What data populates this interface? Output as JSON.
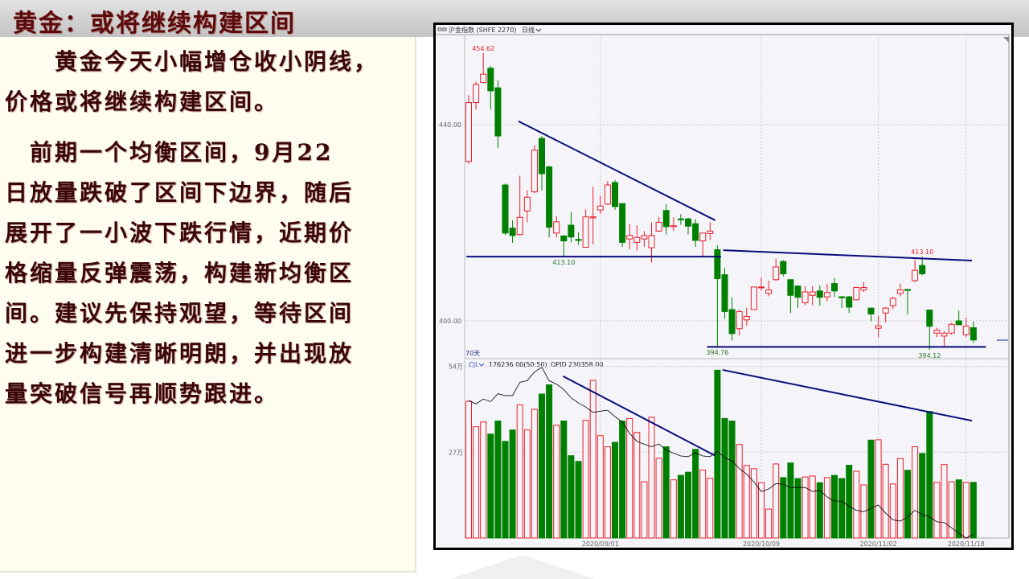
{
  "slide": {
    "title": "黄金：或将继续构建区间",
    "paragraphs": [
      {
        "lines": [
          "　　黄金今天小幅增仓收小阴线，",
          "价格或将继续构建区间。"
        ]
      },
      {
        "lines": [
          "　前期一个均衡区间，9月22",
          "日放量跌破了区间下边界，随后",
          "展开了一小波下跌行情，近期价",
          "格缩量反弹震荡，构建新均衡区",
          "间。建议先保持观望，等待区间",
          "进一步构建清晰明朗，并出现放",
          "量突破信号再顺势跟进。"
        ]
      }
    ]
  },
  "chart_header": {
    "symbol": "沪金指数 (SHFE 2270)",
    "period": "日线",
    "period_icon": "chevron-down-icon",
    "link_icon": "chain-icon",
    "days_label": "70天"
  },
  "volume_header": {
    "indicator": "CJL",
    "indicator_icon": "chevron-down-icon",
    "volume_value": "176236.00(50:50)",
    "opid": "OPID 230358.00"
  },
  "colors": {
    "up": "#e8202a",
    "down": "#008000",
    "trend": "#0a0a7a",
    "grid": "#c8c8d0",
    "oi_line": "#000000",
    "background": "#f4f4f9"
  },
  "chart_data": [
    {
      "type": "candlestick",
      "title": "沪金指数 (SHFE 2270)",
      "yticks": [
        {
          "value": 440,
          "label": "440.00"
        },
        {
          "value": 400,
          "label": "400.00"
        }
      ],
      "ylim": [
        391.5,
        458.5
      ],
      "grid": true,
      "x_date_labels": [
        {
          "index": 18,
          "label": "2020/09/01"
        },
        {
          "index": 40,
          "label": "2020/10/09"
        },
        {
          "index": 56,
          "label": "2020/11/02"
        },
        {
          "index": 68,
          "label": "2020/11/18"
        }
      ],
      "ohlc": [
        [
          432.5,
          446,
          432,
          444.5
        ],
        [
          444.5,
          448.8,
          443.1,
          448.2
        ],
        [
          448.6,
          454.62,
          448.4,
          450.3
        ],
        [
          451.5,
          452,
          443.1,
          446.9
        ],
        [
          447.5,
          449,
          435.2,
          437.7
        ],
        [
          427.7,
          428,
          417.5,
          417.9
        ],
        [
          418.9,
          420.5,
          415.9,
          417.4
        ],
        [
          417.6,
          429.6,
          417.4,
          421.1
        ],
        [
          422.4,
          426.6,
          420.1,
          425.2
        ],
        [
          426.3,
          435.8,
          426,
          434.8
        ],
        [
          437.2,
          437.7,
          426.6,
          430
        ],
        [
          431.4,
          431.6,
          417,
          419.1
        ],
        [
          417.9,
          421.4,
          417,
          420.2
        ],
        [
          417.3,
          417.5,
          413.1,
          416.3
        ],
        [
          419.5,
          422.2,
          416,
          417.1
        ],
        [
          416.6,
          418.1,
          415.5,
          416.4
        ],
        [
          415,
          422.7,
          414.9,
          421.2
        ],
        [
          421,
          427.3,
          415.6,
          421.2
        ],
        [
          422.6,
          425.5,
          421.8,
          423.4
        ],
        [
          423.8,
          428.5,
          423.6,
          427.7
        ],
        [
          428.2,
          428.7,
          422.6,
          423.3
        ],
        [
          423.9,
          424,
          415.1,
          416
        ],
        [
          416.7,
          419.8,
          414.6,
          417.4
        ],
        [
          416,
          419.5,
          414.3,
          417
        ],
        [
          416.7,
          418.3,
          415.1,
          417.4
        ],
        [
          414.9,
          420.1,
          411.9,
          417.4
        ],
        [
          418.3,
          421.2,
          418.1,
          420.1
        ],
        [
          422.5,
          423.8,
          417.6,
          419.2
        ],
        [
          419.2,
          421.1,
          418.3,
          419.4
        ],
        [
          420.8,
          421.8,
          419.6,
          420.6
        ],
        [
          420.8,
          421,
          417.6,
          419.3
        ],
        [
          419.8,
          420.8,
          415.1,
          416.4
        ],
        [
          416.3,
          417.9,
          413.1,
          417.9
        ],
        [
          417.8,
          420.1,
          416.5,
          418.3
        ],
        [
          414.5,
          415.4,
          394.76,
          408.6
        ],
        [
          409.4,
          410.8,
          400.4,
          401.9
        ],
        [
          402.3,
          404.8,
          396,
          397.4
        ],
        [
          398.4,
          402.3,
          397,
          401.9
        ],
        [
          400.2,
          402.7,
          399,
          400.9
        ],
        [
          402.3,
          407,
          402.2,
          406.9
        ],
        [
          406.8,
          408.8,
          406.1,
          406.9
        ],
        [
          405.6,
          408.2,
          405,
          406.3
        ],
        [
          408.4,
          412.7,
          408.2,
          411
        ],
        [
          412.1,
          412.4,
          409.1,
          409.6
        ],
        [
          408.4,
          408.5,
          401.6,
          405.2
        ],
        [
          407.1,
          407.3,
          402.6,
          404.8
        ],
        [
          403.7,
          407.1,
          403.2,
          405.9
        ],
        [
          405.2,
          407.1,
          403.2,
          405.9
        ],
        [
          406.1,
          407.2,
          403.1,
          404.8
        ],
        [
          404.9,
          407.5,
          404,
          405.8
        ],
        [
          407.6,
          408.7,
          404.9,
          406.1
        ],
        [
          404.9,
          405.1,
          402.6,
          404.7
        ],
        [
          404.9,
          405.1,
          401.6,
          402.8
        ],
        [
          404.3,
          406.9,
          404.2,
          406.8
        ],
        [
          406.3,
          407.9,
          405.9,
          406.8
        ],
        [
          402.6,
          402.7,
          399.9,
          401.4
        ],
        [
          398.5,
          401,
          396.7,
          399
        ],
        [
          401.6,
          402.8,
          399.7,
          402.6
        ],
        [
          403.1,
          404.9,
          402.4,
          404.6
        ],
        [
          405.6,
          407.6,
          405,
          406.3
        ],
        [
          406.4,
          406.5,
          401.3,
          406.2
        ],
        [
          408.2,
          412.5,
          407.9,
          410.3
        ],
        [
          411.3,
          413.1,
          409.3,
          409.6
        ],
        [
          402.2,
          402.3,
          394.12,
          398.9
        ],
        [
          397.5,
          398.6,
          396.7,
          398.1
        ],
        [
          396.9,
          397.9,
          394.8,
          397.5
        ],
        [
          397.5,
          399.6,
          397.2,
          399.3
        ],
        [
          400,
          402.1,
          399.2,
          399.2
        ],
        [
          397.2,
          400.7,
          396.7,
          398.9
        ],
        [
          398.6,
          399.8,
          395.5,
          396.1
        ]
      ],
      "annotations": [
        {
          "index": 2,
          "value": 454.62,
          "label": "454.62",
          "color": "#e8202a",
          "pos": "above"
        },
        {
          "index": 13,
          "value": 413.1,
          "label": "413.10",
          "color": "#2a7a2a",
          "pos": "below"
        },
        {
          "index": 34,
          "value": 394.76,
          "label": "394.76",
          "color": "#2a7a2a",
          "pos": "below"
        },
        {
          "index": 62,
          "value": 413.1,
          "label": "413.10",
          "color": "#e8202a",
          "pos": "above"
        },
        {
          "index": 63,
          "value": 394.12,
          "label": "394.12",
          "color": "#2a7a2a",
          "pos": "below"
        }
      ],
      "trendlines": [
        {
          "from": [
            6.8,
            440.7
          ],
          "to": [
            33.7,
            420.5
          ]
        },
        {
          "from": [
            -0.3,
            413.1
          ],
          "to": [
            34.5,
            413.1
          ]
        },
        {
          "from": [
            34.8,
            414.4
          ],
          "to": [
            68.8,
            412.3
          ]
        },
        {
          "from": [
            32.6,
            394.7
          ],
          "to": [
            70.7,
            394.7
          ]
        }
      ]
    },
    {
      "type": "bar",
      "title": "CJL",
      "yticks": [
        {
          "value": 54,
          "label": "54万"
        },
        {
          "value": 27,
          "label": "27万"
        }
      ],
      "ylim": [
        0,
        57
      ],
      "unit": "万",
      "volume": [
        43.0,
        35.0,
        36.5,
        32.7,
        36.8,
        30.4,
        34.0,
        41.9,
        34.0,
        40.5,
        45.3,
        48.2,
        35.5,
        36.8,
        25.9,
        24.1,
        37.0,
        49.6,
        32.2,
        28.7,
        30.1,
        36.8,
        37.6,
        33.2,
        17.7,
        38.0,
        25.1,
        28.7,
        18.3,
        19.7,
        20.7,
        27.9,
        21.4,
        18.8,
        52.8,
        37.6,
        36.8,
        29.4,
        22.8,
        21.8,
        17.4,
        9.1,
        23.3,
        19.0,
        23.6,
        18.7,
        19.2,
        19.5,
        17.4,
        19.0,
        19.7,
        18.7,
        22.9,
        21.0,
        16.7,
        30.8,
        30.9,
        23.2,
        17.0,
        25.0,
        21.3,
        28.7,
        26.6,
        39.8,
        17.5,
        23.1,
        17.7,
        18.3,
        17.5,
        17.5
      ],
      "open_interest_line": [
        43.3,
        42.2,
        43.7,
        42.9,
        45.4,
        44.8,
        44.8,
        49.0,
        49.5,
        52.3,
        53.7,
        49.5,
        48.4,
        46.7,
        44.1,
        42.5,
        41.2,
        39.5,
        39.9,
        40.2,
        38.2,
        36.5,
        32.9,
        30.4,
        29.5,
        28.7,
        29.6,
        27.7,
        26.7,
        25.8,
        25.6,
        26.8,
        25.8,
        25.6,
        27.3,
        25.2,
        24.3,
        21.8,
        20.1,
        17.6,
        14.6,
        15.4,
        17.1,
        16.9,
        15.9,
        15.9,
        15.9,
        14.6,
        15.0,
        12.9,
        11.6,
        11.6,
        10.0,
        8.7,
        8.3,
        9.3,
        10.4,
        7.8,
        5.7,
        5.3,
        6.6,
        8.7,
        7.4,
        6.6,
        5.1,
        4.9,
        3.2,
        1.5,
        0.0,
        1.1
      ],
      "trendlines": [
        {
          "from": [
            12.9,
            50.9
          ],
          "to": [
            33.7,
            25.9
          ]
        },
        {
          "from": [
            34.7,
            52.9
          ],
          "to": [
            68.8,
            36.9
          ]
        }
      ]
    }
  ]
}
